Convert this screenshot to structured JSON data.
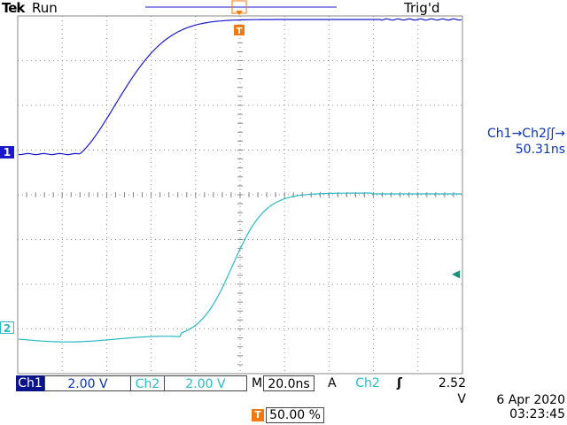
{
  "header": {
    "brand": "Tek",
    "mode": "Run",
    "trigger_state": "Trig'd"
  },
  "channels": {
    "ch1": {
      "marker": "1",
      "label": "Ch1",
      "scale": "2.00 V",
      "color": "#1a1acc"
    },
    "ch2": {
      "marker": "2",
      "label": "Ch2",
      "scale": "2.00 V",
      "color": "#2ab9c3"
    }
  },
  "measurement": {
    "label_line": "Ch1→Ch2ʃʃ→",
    "value": "50.31ns"
  },
  "timebase": {
    "label": "M",
    "value": "20.0ns"
  },
  "trigger": {
    "label": "A",
    "source": "Ch2",
    "slope_icon": "rising-edge-icon",
    "level": "2.52 V",
    "position_marker": "T",
    "position": "50.00 %",
    "color": "#f07a10"
  },
  "datetime": {
    "date": "6 Apr 2020",
    "time": "03:23:45"
  }
}
